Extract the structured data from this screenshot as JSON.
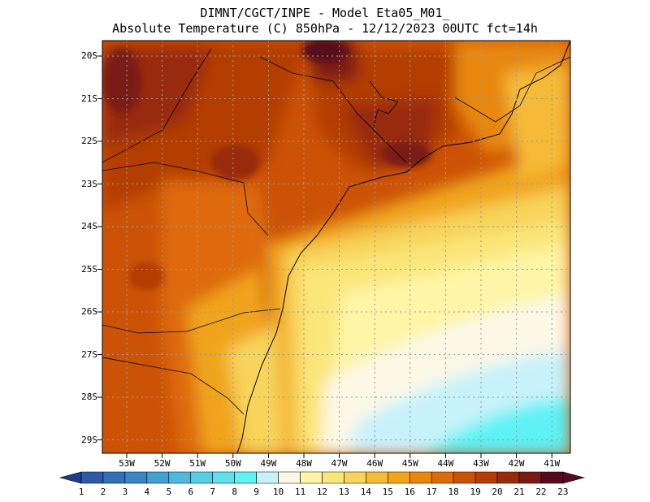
{
  "header": {
    "line1": "DIMNT/CGCT/INPE -  Model Eta05_M01_",
    "line2": "Absolute Temperature (C) 850hPa -  12/12/2023 00UTC fct=14h"
  },
  "map": {
    "lat_labels": [
      "20S",
      "21S",
      "22S",
      "23S",
      "24S",
      "25S",
      "26S",
      "27S",
      "28S",
      "29S"
    ],
    "lon_labels": [
      "53W",
      "52W",
      "51W",
      "50W",
      "49W",
      "48W",
      "47W",
      "46W",
      "45W",
      "44W",
      "43W",
      "42W",
      "41W"
    ]
  },
  "colorbar": {
    "labels": [
      "1",
      "2",
      "3",
      "4",
      "5",
      "6",
      "7",
      "8",
      "9",
      "10",
      "11",
      "12",
      "13",
      "14",
      "15",
      "16",
      "17",
      "18",
      "19",
      "20",
      "21",
      "22",
      "23"
    ],
    "colors": [
      "#1f3c8c",
      "#2a5aa8",
      "#3270b8",
      "#3a86c6",
      "#45a0d2",
      "#4fb8dc",
      "#58cce4",
      "#5de0ec",
      "#5ef2f5",
      "#c8f2fa",
      "#fdf8e6",
      "#fef5a6",
      "#fbe67a",
      "#f8d45a",
      "#f5bb38",
      "#f0a41a",
      "#e8870a",
      "#de6a08",
      "#cc5306",
      "#b43e06",
      "#982c0a",
      "#7a1c14",
      "#560a1c"
    ]
  }
}
